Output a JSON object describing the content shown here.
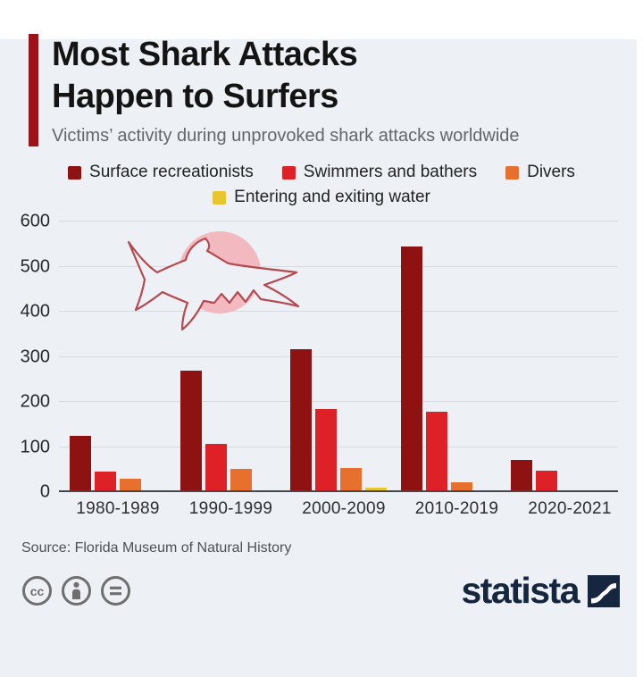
{
  "header": {
    "title_line1": "Most Shark Attacks",
    "title_line2": "Happen to Surfers",
    "subtitle": "Victims’ activity during unprovoked shark attacks worldwide"
  },
  "chart_data": {
    "type": "bar",
    "title": "Most Shark Attacks Happen to Surfers",
    "categories": [
      "1980-1989",
      "1990-1999",
      "2000-2009",
      "2010-2019",
      "2020-2021"
    ],
    "series": [
      {
        "name": "Surface recreationists",
        "color": "#8e1212",
        "values": [
          125,
          270,
          318,
          545,
          72
        ]
      },
      {
        "name": "Swimmers and bathers",
        "color": "#de2127",
        "values": [
          46,
          108,
          185,
          178,
          48
        ]
      },
      {
        "name": "Divers",
        "color": "#e8702e",
        "values": [
          30,
          52,
          53,
          23,
          2
        ]
      },
      {
        "name": "Entering and exiting water",
        "color": "#e9c52f",
        "values": [
          2,
          3,
          10,
          5,
          1
        ]
      }
    ],
    "xlabel": "",
    "ylabel": "",
    "ylim": [
      0,
      600
    ],
    "yticks": [
      0,
      100,
      200,
      300,
      400,
      500,
      600
    ],
    "grid": true,
    "legend_position": "top"
  },
  "illustration": {
    "icon": "shark-outline-icon",
    "circle_color": "#f2b9c0",
    "stroke_color": "#b5494f"
  },
  "source": {
    "text": "Source: Florida Museum of Natural History"
  },
  "footer": {
    "brand": "statista",
    "license_icons": [
      "cc-icon",
      "attribution-icon",
      "no-derivatives-icon"
    ]
  },
  "colors": {
    "background": "#edf1f5",
    "accent_bar": "#9c1218",
    "brand_navy": "#16263e"
  }
}
